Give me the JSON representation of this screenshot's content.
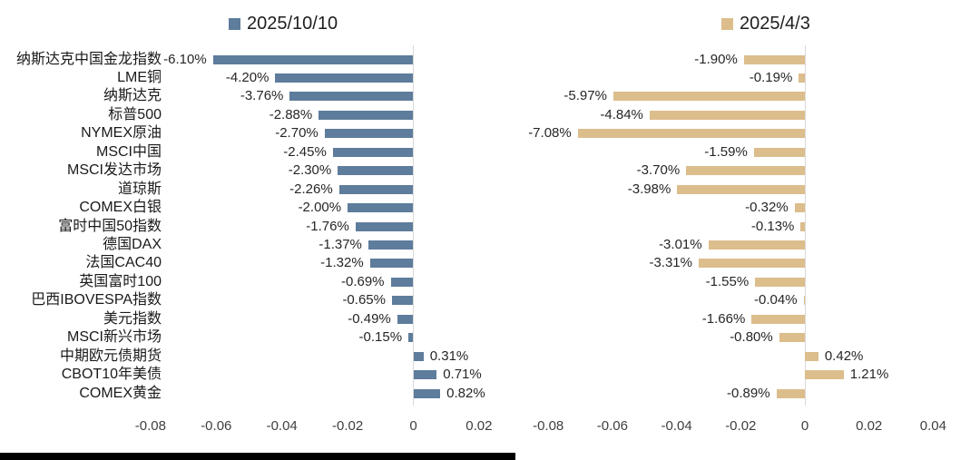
{
  "colors": {
    "series_blue": "#5e7c9b",
    "series_tan": "#dcbd8c",
    "axis_line": "#d9d9d9",
    "category_text": "#1a1a1a",
    "value_text": "#262626",
    "tick_text": "#404040",
    "legend_text": "#1f1f1f",
    "bottom_bar": "#000000"
  },
  "chart_data": [
    {
      "type": "bar",
      "orientation": "horizontal",
      "title": "2025/10/10",
      "legend_position": "top",
      "grid": false,
      "series_color": "#5e7c9b",
      "categories": [
        "纳斯达克中国金龙指数",
        "LME铜",
        "纳斯达克",
        "标普500",
        "NYMEX原油",
        "MSCI中国",
        "MSCI发达市场",
        "道琼斯",
        "COMEX白银",
        "富时中国50指数",
        "德国DAX",
        "法国CAC40",
        "英国富时100",
        "巴西IBOVESPA指数",
        "美元指数",
        "MSCI新兴市场",
        "中期欧元债期货",
        "CBOT10年美债",
        "COMEX黄金"
      ],
      "values": [
        -0.061,
        -0.042,
        -0.0376,
        -0.0288,
        -0.027,
        -0.0245,
        -0.023,
        -0.0226,
        -0.02,
        -0.0176,
        -0.0137,
        -0.0132,
        -0.0069,
        -0.0065,
        -0.0049,
        -0.0015,
        0.0031,
        0.0071,
        0.0082
      ],
      "data_labels": [
        "-6.10%",
        "-4.20%",
        "-3.76%",
        "-2.88%",
        "-2.70%",
        "-2.45%",
        "-2.30%",
        "-2.26%",
        "-2.00%",
        "-1.76%",
        "-1.37%",
        "-1.32%",
        "-0.69%",
        "-0.65%",
        "-0.49%",
        "-0.15%",
        "0.31%",
        "0.71%",
        "0.82%"
      ],
      "x_ticks": [
        "-0.08",
        "-0.06",
        "-0.04",
        "-0.02",
        "0",
        "0.02"
      ],
      "xlim": [
        -0.09,
        0.03
      ]
    },
    {
      "type": "bar",
      "orientation": "horizontal",
      "title": "2025/4/3",
      "legend_position": "top",
      "grid": false,
      "series_color": "#dcbd8c",
      "categories": [
        "纳斯达克中国金龙指数",
        "LME铜",
        "纳斯达克",
        "标普500",
        "NYMEX原油",
        "MSCI中国",
        "MSCI发达市场",
        "道琼斯",
        "COMEX白银",
        "富时中国50指数",
        "德国DAX",
        "法国CAC40",
        "英国富时100",
        "巴西IBOVESPA指数",
        "美元指数",
        "MSCI新兴市场",
        "中期欧元债期货",
        "CBOT10年美债",
        "COMEX黄金"
      ],
      "values": [
        -0.019,
        -0.0019,
        -0.0597,
        -0.0484,
        -0.0708,
        -0.0159,
        -0.037,
        -0.0398,
        -0.0032,
        -0.0013,
        -0.0301,
        -0.0331,
        -0.0155,
        -0.0004,
        -0.0166,
        -0.008,
        0.0042,
        0.0121,
        -0.0089
      ],
      "data_labels": [
        "-1.90%",
        "-0.19%",
        "-5.97%",
        "-4.84%",
        "-7.08%",
        "-1.59%",
        "-3.70%",
        "-3.98%",
        "-0.32%",
        "-0.13%",
        "-3.01%",
        "-3.31%",
        "-1.55%",
        "-0.04%",
        "-1.66%",
        "-0.80%",
        "0.42%",
        "1.21%",
        "-0.89%"
      ],
      "x_ticks": [
        "-0.08",
        "-0.06",
        "-0.04",
        "-0.02",
        "0",
        "0.02",
        "0.04"
      ],
      "xlim": [
        -0.088,
        0.046
      ]
    }
  ]
}
